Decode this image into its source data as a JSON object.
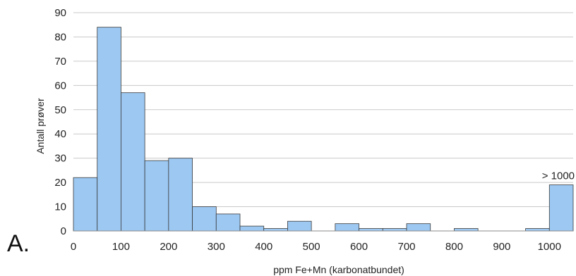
{
  "panel_label": "A.",
  "chart_data": {
    "type": "bar",
    "bin_start": [
      0,
      50,
      100,
      150,
      200,
      250,
      300,
      350,
      400,
      450,
      500,
      550,
      600,
      650,
      700,
      750,
      800,
      850,
      900,
      950,
      1000
    ],
    "bin_width": 50,
    "values": [
      22,
      84,
      57,
      29,
      30,
      10,
      7,
      2,
      1,
      4,
      0,
      3,
      1,
      1,
      3,
      0,
      1,
      0,
      0,
      1,
      19
    ],
    "x_tick_labels": [
      "0",
      "100",
      "200",
      "300",
      "400",
      "500",
      "600",
      "700",
      "800",
      "900",
      "1000"
    ],
    "y_tick_labels": [
      "0",
      "10",
      "20",
      "30",
      "40",
      "50",
      "60",
      "70",
      "80",
      "90"
    ],
    "xlabel": "ppm Fe+Mn (karbonatbundet)",
    "ylabel": "Antall prøver",
    "xlim": [
      0,
      1050
    ],
    "ylim": [
      0,
      90
    ],
    "grid": "horizontal",
    "annotations": [
      {
        "text": "> 1000",
        "bin_index": 20
      }
    ],
    "colors": {
      "bar_fill": "#9cc8f2",
      "bar_edge": "#3a3a3a",
      "grid": "#c9c9c9"
    }
  }
}
